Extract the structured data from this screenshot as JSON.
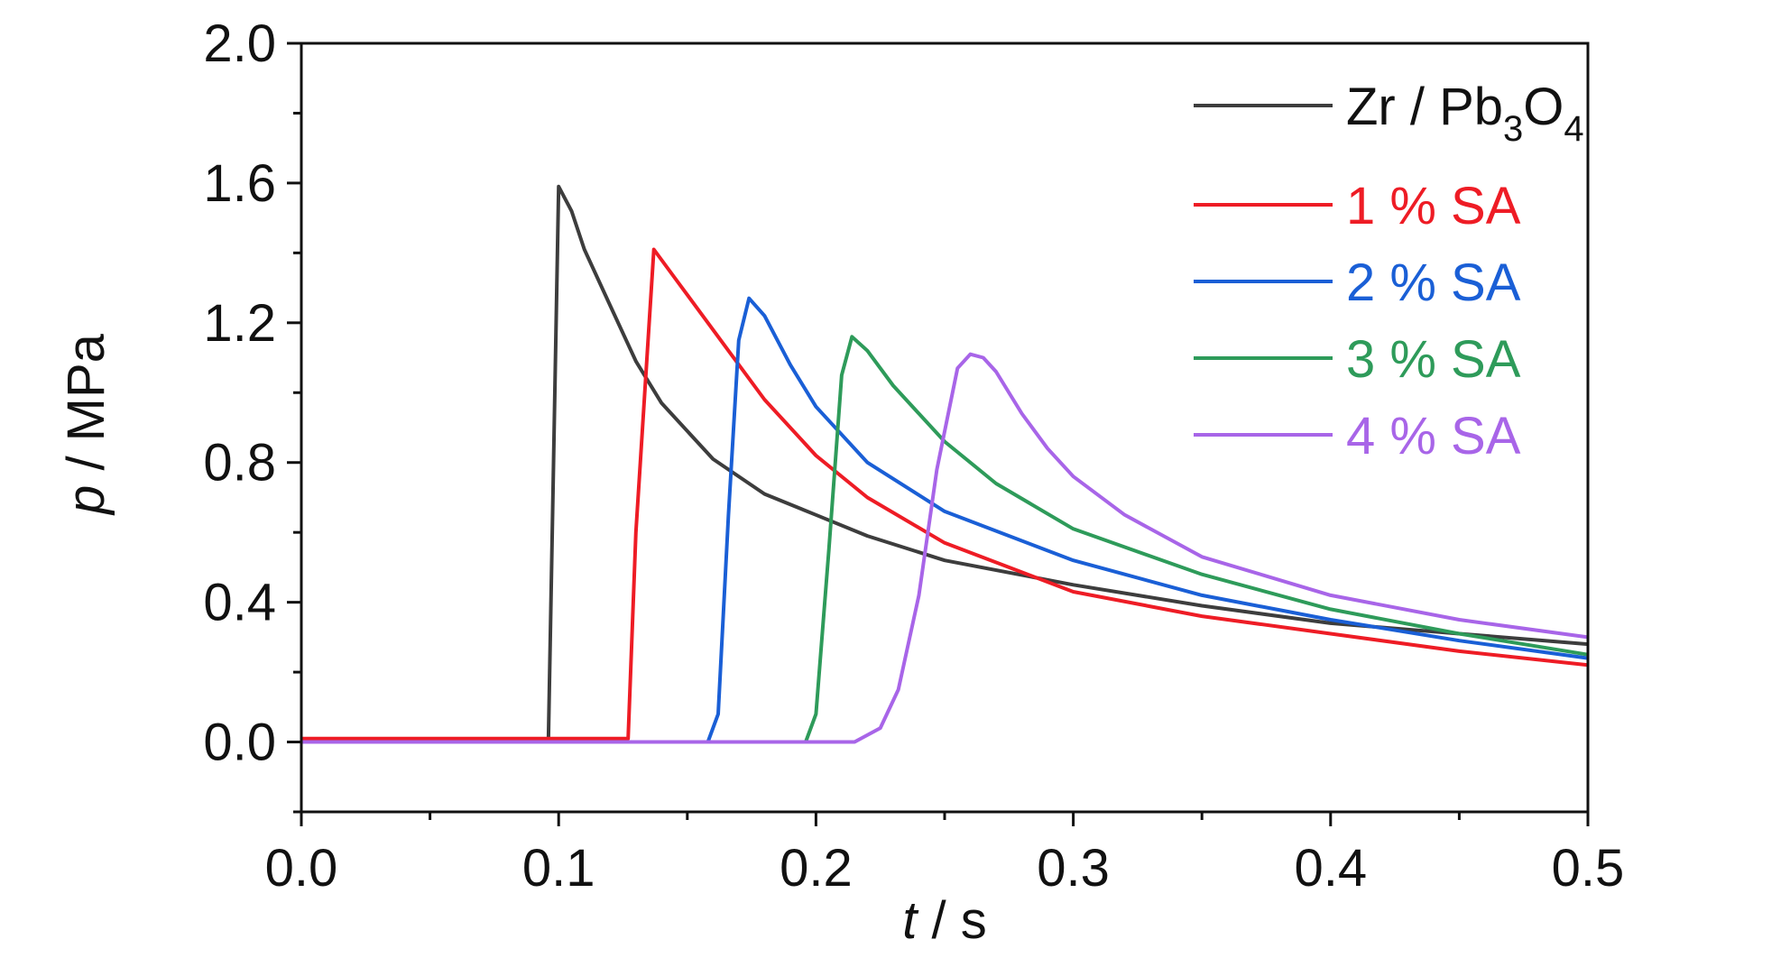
{
  "chart_data": {
    "type": "line",
    "xlabel": {
      "var": "t",
      "unit": " / s"
    },
    "ylabel": {
      "var": "p",
      "unit": " / MPa"
    },
    "xlim": [
      0.0,
      0.5
    ],
    "ylim": [
      -0.2,
      2.0
    ],
    "x_ticks": [
      "0.0",
      "0.1",
      "0.2",
      "0.3",
      "0.4",
      "0.5"
    ],
    "y_ticks": [
      "0.0",
      "0.4",
      "0.8",
      "1.2",
      "1.6",
      "2.0"
    ],
    "legend_position": "top-right",
    "series": [
      {
        "name": "Zr / Pb3O4",
        "label": {
          "base": "Zr / Pb",
          "sub1": "3",
          "mid": "O",
          "sub2": "4"
        },
        "color": "#3d3d3d",
        "x": [
          0.0,
          0.096,
          0.0975,
          0.1,
          0.105,
          0.11,
          0.12,
          0.13,
          0.14,
          0.16,
          0.18,
          0.2,
          0.22,
          0.25,
          0.3,
          0.35,
          0.4,
          0.45,
          0.5
        ],
        "y": [
          0.0,
          0.0,
          0.6,
          1.59,
          1.52,
          1.41,
          1.25,
          1.09,
          0.97,
          0.81,
          0.71,
          0.65,
          0.59,
          0.52,
          0.45,
          0.39,
          0.34,
          0.31,
          0.28
        ]
      },
      {
        "name": "1 % SA",
        "color": "#ee1c25",
        "x": [
          0.0,
          0.127,
          0.13,
          0.137,
          0.145,
          0.16,
          0.18,
          0.2,
          0.22,
          0.25,
          0.3,
          0.35,
          0.4,
          0.45,
          0.5
        ],
        "y": [
          0.01,
          0.01,
          0.6,
          1.41,
          1.33,
          1.18,
          0.98,
          0.82,
          0.7,
          0.57,
          0.43,
          0.36,
          0.31,
          0.26,
          0.22
        ]
      },
      {
        "name": "2 % SA",
        "color": "#1a5fd6",
        "x": [
          0.0,
          0.158,
          0.162,
          0.166,
          0.17,
          0.174,
          0.18,
          0.19,
          0.2,
          0.22,
          0.25,
          0.3,
          0.35,
          0.4,
          0.45,
          0.5
        ],
        "y": [
          0.0,
          0.0,
          0.08,
          0.65,
          1.15,
          1.27,
          1.22,
          1.08,
          0.96,
          0.8,
          0.66,
          0.52,
          0.42,
          0.35,
          0.29,
          0.24
        ]
      },
      {
        "name": "3 % SA",
        "color": "#2e9b5a",
        "x": [
          0.0,
          0.196,
          0.2,
          0.205,
          0.21,
          0.214,
          0.22,
          0.23,
          0.24,
          0.25,
          0.27,
          0.3,
          0.35,
          0.4,
          0.45,
          0.5
        ],
        "y": [
          0.0,
          0.0,
          0.08,
          0.55,
          1.05,
          1.16,
          1.12,
          1.02,
          0.94,
          0.86,
          0.74,
          0.61,
          0.48,
          0.38,
          0.31,
          0.25
        ]
      },
      {
        "name": "4 % SA",
        "color": "#a865e8",
        "x": [
          0.0,
          0.215,
          0.225,
          0.232,
          0.24,
          0.247,
          0.255,
          0.26,
          0.265,
          0.27,
          0.28,
          0.29,
          0.3,
          0.32,
          0.35,
          0.4,
          0.45,
          0.5
        ],
        "y": [
          0.0,
          0.0,
          0.04,
          0.15,
          0.42,
          0.78,
          1.07,
          1.11,
          1.1,
          1.06,
          0.94,
          0.84,
          0.76,
          0.65,
          0.53,
          0.42,
          0.35,
          0.3
        ]
      }
    ]
  }
}
